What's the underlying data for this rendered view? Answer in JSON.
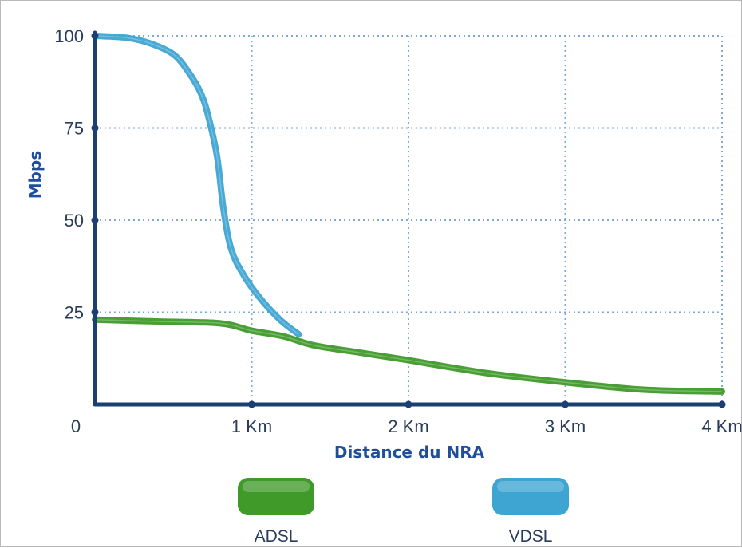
{
  "chart_data": {
    "type": "line",
    "xlabel": "Distance du NRA",
    "ylabel": "Mbps",
    "xlim": [
      0,
      4
    ],
    "ylim": [
      0,
      100
    ],
    "x_ticks": [
      {
        "value": 0,
        "label": "0"
      },
      {
        "value": 1,
        "label": "1 Km"
      },
      {
        "value": 2,
        "label": "2 Km"
      },
      {
        "value": 3,
        "label": "3 Km"
      },
      {
        "value": 4,
        "label": "4 Km"
      }
    ],
    "y_ticks": [
      {
        "value": 25,
        "label": "25"
      },
      {
        "value": 50,
        "label": "50"
      },
      {
        "value": 75,
        "label": "75"
      },
      {
        "value": 100,
        "label": "100"
      }
    ],
    "grid": true,
    "legend_position": "bottom",
    "series": [
      {
        "name": "ADSL",
        "color": "#3f9a2a",
        "x": [
          0,
          0.4,
          0.8,
          1.0,
          1.2,
          1.4,
          1.7,
          2.0,
          2.5,
          3.0,
          3.5,
          4.0
        ],
        "y": [
          23,
          22.5,
          22,
          20,
          18.5,
          16,
          14,
          12,
          8.5,
          6,
          4,
          3.5
        ]
      },
      {
        "name": "VDSL",
        "color": "#3ea4d2",
        "x": [
          0,
          0.2,
          0.35,
          0.5,
          0.6,
          0.68,
          0.73,
          0.78,
          0.82,
          0.87,
          0.95,
          1.05,
          1.18,
          1.3
        ],
        "y": [
          100,
          99.5,
          98,
          95,
          90,
          84,
          77,
          67,
          53,
          42,
          35,
          29,
          23,
          19
        ]
      }
    ]
  }
}
